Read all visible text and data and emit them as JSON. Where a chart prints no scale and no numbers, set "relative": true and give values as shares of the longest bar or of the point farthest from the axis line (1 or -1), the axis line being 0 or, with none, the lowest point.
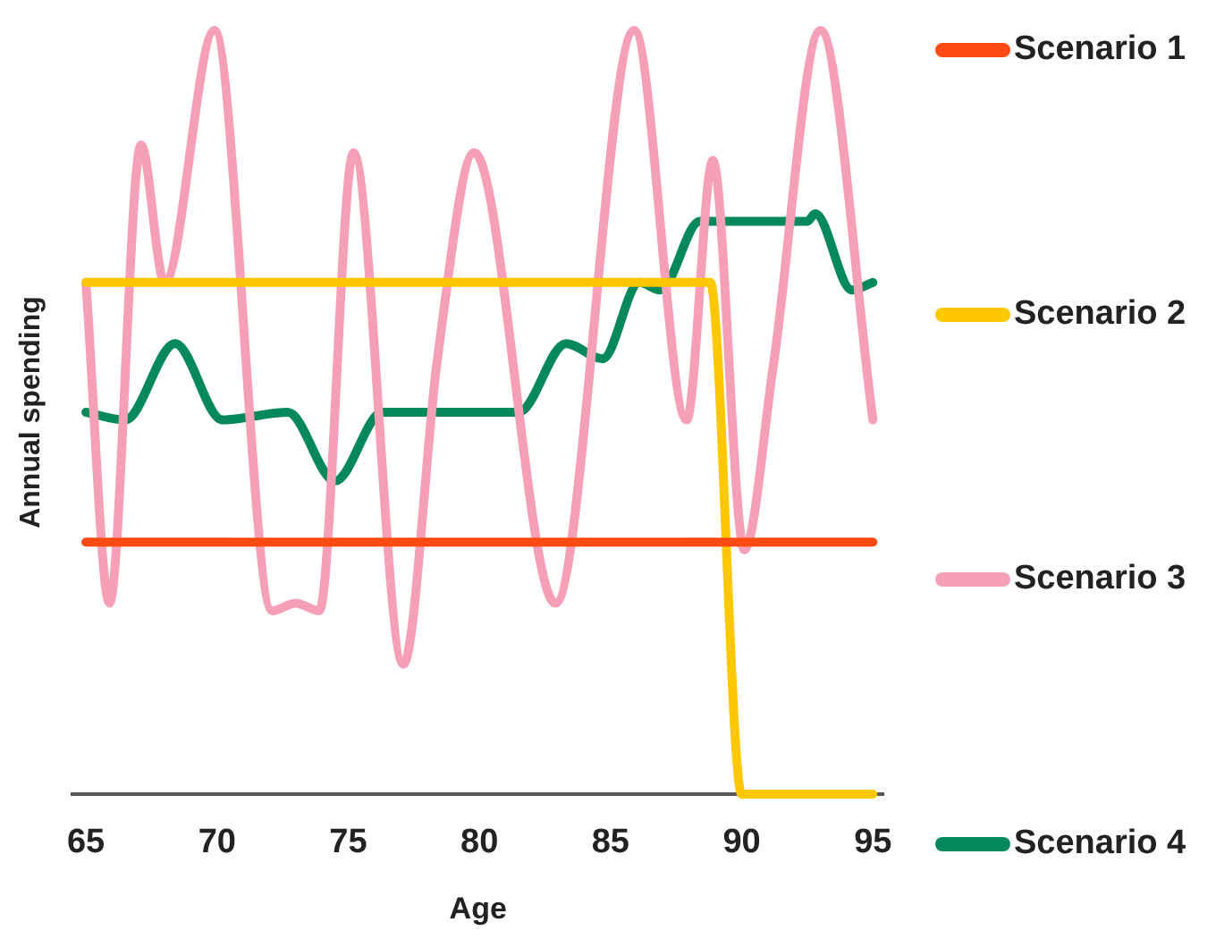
{
  "chart_data": {
    "type": "line",
    "xlabel": "Age",
    "ylabel": "Annual spending",
    "relative": true,
    "xlim": [
      64.5,
      95.4
    ],
    "xticks": [
      65,
      70,
      75,
      80,
      85,
      90,
      95
    ],
    "legend": "right",
    "series": [
      {
        "name": "Scenario 1",
        "color": "#ff4a14",
        "x": [
          65,
          95
        ],
        "values": [
          0.33,
          0.33
        ]
      },
      {
        "name": "Scenario 2",
        "color": "#ffc700",
        "x": [
          65,
          88.8,
          90,
          95
        ],
        "values": [
          0.67,
          0.67,
          0,
          0
        ]
      },
      {
        "name": "Scenario 3",
        "color": "#f6a0b8",
        "x": [
          65,
          65.9,
          67.1,
          68,
          69.9,
          72.1,
          73,
          73.9,
          75.2,
          77.1,
          78.4,
          79.8,
          82.9,
          85.9,
          87.9,
          88.9,
          90.1,
          91.2,
          93,
          95
        ],
        "values": [
          0.67,
          0.25,
          0.85,
          0.67,
          1,
          0.24,
          0.25,
          0.24,
          0.84,
          0.17,
          0.57,
          0.84,
          0.25,
          1,
          0.49,
          0.83,
          0.32,
          0.56,
          1,
          0.49
        ]
      },
      {
        "name": "Scenario 4",
        "color": "#05895a",
        "x": [
          65,
          66.5,
          68.4,
          70.2,
          72.7,
          74.5,
          76.3,
          81.5,
          83.3,
          84.7,
          86.1,
          86.9,
          88.4,
          92.5,
          92.8,
          94.2,
          95
        ],
        "values": [
          0.5,
          0.49,
          0.59,
          0.49,
          0.5,
          0.41,
          0.5,
          0.5,
          0.59,
          0.57,
          0.67,
          0.66,
          0.75,
          0.75,
          0.76,
          0.66,
          0.67
        ]
      }
    ]
  }
}
